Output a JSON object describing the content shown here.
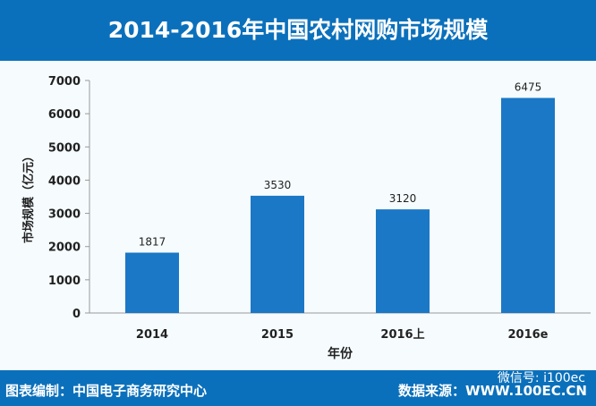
{
  "chart_data": {
    "type": "bar",
    "title": "2014-2016年中国农村网购市场规模",
    "xlabel": "年份",
    "ylabel": "市场规模（亿元）",
    "categories": [
      "2014",
      "2015",
      "2016上",
      "2016e"
    ],
    "values": [
      1817,
      3530,
      3120,
      6475
    ],
    "ylim": [
      0,
      7000
    ],
    "yticks": [
      0,
      1000,
      2000,
      3000,
      4000,
      5000,
      6000,
      7000
    ],
    "grid": false,
    "bar_color": "#1a78c6"
  },
  "footer": {
    "left": "图表编制：中国电子商务研究中心",
    "right": "数据来源：WWW.100EC.CN",
    "watermark": "微信号: i100ec"
  }
}
